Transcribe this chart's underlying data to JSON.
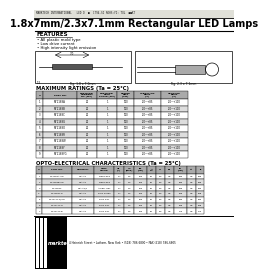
{
  "bg_color": "#f5f5f0",
  "page_bg": "#ffffff",
  "header_line1": "MARKTECH INTERNATIONAL   LED D  ■  CT94-SI ROHS:YI: TOL  ■■KT",
  "title": "1.8x7mm/2.3x7.1mm Rectangular LED Lamps",
  "features_title": "FEATURES",
  "features": [
    "• All plastic mold type",
    "• Low drive current",
    "• High intensity light emission"
  ],
  "max_ratings_title": "MAXIMUM RATINGS (Ta = 25°C)",
  "max_ratings_col_headers": [
    "#",
    "PART NO.",
    "FORWARD\nCURRENT\nDC (mA)",
    "FORWARD\nPEAK\nPULSE (mA)",
    "POWER\nDISS\n(mW)",
    "OPERATING\nTEMP\n(°C)",
    "STORAGE\nTEMP\n(°C)"
  ],
  "max_ratings_rows": [
    [
      "1",
      "MT1188A",
      "20",
      "1",
      "100",
      "-20~+85",
      "-20~+100"
    ],
    [
      "2",
      "MT1188B",
      "20",
      "1",
      "100",
      "-20~+85",
      "-20~+100"
    ],
    [
      "3",
      "MT1188C",
      "20",
      "1",
      "100",
      "-20~+85",
      "-20~+100"
    ],
    [
      "4",
      "MT1188G",
      "20",
      "1",
      "100",
      "-20~+85",
      "-20~+100"
    ],
    [
      "5",
      "MT1188O",
      "20",
      "1",
      "100",
      "-20~+85",
      "-20~+100"
    ],
    [
      "6",
      "MT1188R",
      "20",
      "1",
      "100",
      "-20~+85",
      "-20~+100"
    ],
    [
      "7",
      "MT1188W",
      "20",
      "1",
      "100",
      "-20~+85",
      "-20~+100"
    ],
    [
      "8",
      "MT1188Y",
      "20",
      "1",
      "100",
      "-20~+85",
      "-20~+100"
    ],
    [
      "9",
      "MT1188YG",
      "20",
      "1",
      "100",
      "-20~+85",
      "-20~+100"
    ]
  ],
  "opto_title": "OPTO-ELECTRICAL CHARACTERISTICS (Ta = 25°C)",
  "opto_col_headers": [
    "#",
    "PART NO.",
    "MATERIAL",
    "LENS\nCOLOR",
    "VF\n(V)",
    "IV\n(mcd)",
    "λD\n(nm)",
    "θ½",
    "Vr",
    "Po",
    "λP\n(nm)",
    "Ct",
    "Tr"
  ],
  "opto_rows": [
    [
      "1",
      "MT1188A-UR",
      "GaAlAs",
      "Deep Red",
      "1.7",
      "1.5",
      "100",
      "25",
      "5.5",
      "0.5",
      "650",
      "0.5",
      "659"
    ],
    [
      "2",
      "MT1188B-UR",
      "GaAlAs",
      "Deep Red",
      "1.7",
      "1.5",
      "100",
      "25",
      "5.5",
      "0.5",
      "650",
      "0.5",
      "659"
    ],
    [
      "3",
      "MT1188C",
      "GaAlAs/P",
      "Amber GaL",
      "1.7",
      "1.5",
      "100",
      "25",
      "5.5",
      "0.5",
      "589",
      "0.5",
      "590"
    ],
    [
      "4",
      "MT1188Y-G",
      "GaAlAs",
      "Pure Green",
      "1.7",
      "1.5",
      "100",
      "25",
      "5.5",
      "0.5",
      "565",
      "0.5",
      "568"
    ],
    [
      "5",
      "MT1177Y-G/UR",
      "GaAlAs",
      "Pure GaL",
      "1.7",
      "1.5",
      "100",
      "25",
      "5.5",
      "0.5",
      "590",
      "0.5",
      "590"
    ],
    [
      "6",
      "MT1177T-G",
      "GaAlAs",
      "Pure GaL",
      "1.7",
      "1.5",
      "100",
      "25",
      "5.5",
      "0.5",
      "565",
      "0.5",
      "568"
    ],
    [
      "7",
      "MT1177T-B",
      "GaAlAs",
      "Pure GaL",
      "1.7",
      "1.5",
      "100",
      "25",
      "5.5",
      "0.5",
      "470",
      "0.5",
      "470"
    ]
  ],
  "footer_address": "4 Heinrich Street • Latham, New York • (518) 786-6800 • FAX (518) 786-6805",
  "col_widths_mr": [
    7,
    34,
    20,
    20,
    17,
    27,
    27
  ],
  "col_widths_opto": [
    6,
    30,
    22,
    20,
    10,
    10,
    13,
    9,
    9,
    9,
    13,
    9,
    8
  ],
  "hdr_color": "#aaaaaa",
  "row_colors": [
    "#ffffff",
    "#dddddd"
  ]
}
